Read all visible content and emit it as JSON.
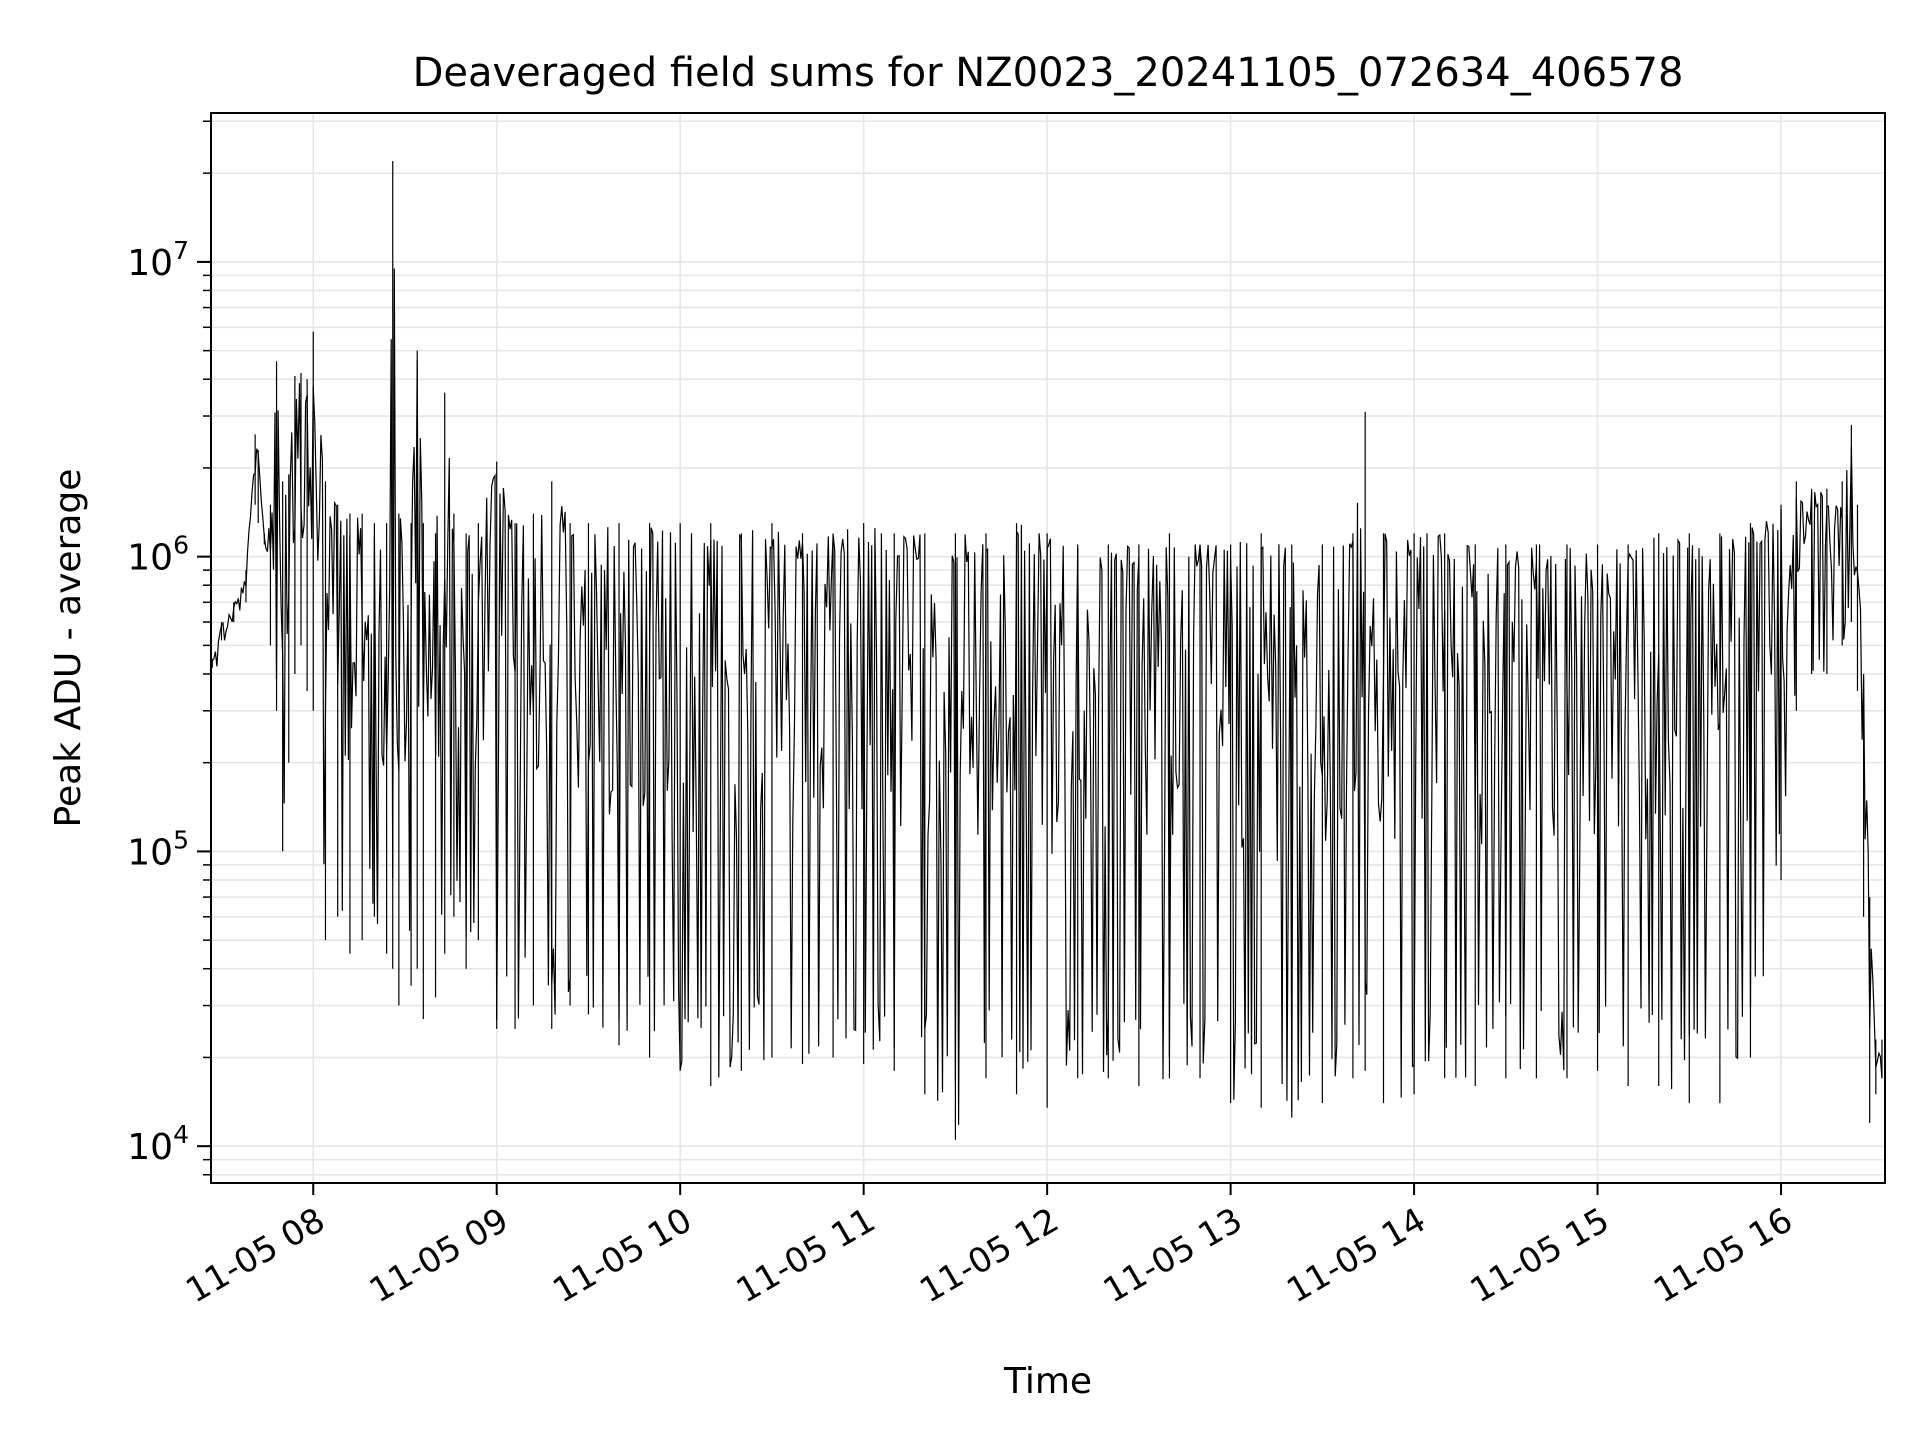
{
  "chart_data": {
    "type": "line",
    "title": "Deaveraged field sums for NZ0023_20241105_072634_406578",
    "xlabel": "Time",
    "ylabel": "Peak ADU - average",
    "y_scale": "log",
    "ylim": [
      7500,
      32000000
    ],
    "xlim": [
      "2024-11-05 07:26:34",
      "2024-11-05 16:34:00"
    ],
    "grid": true,
    "legend": "none",
    "line_color": "#000000",
    "x_ticks": [
      {
        "label": "11-05 08",
        "time": "2024-11-05 08:00"
      },
      {
        "label": "11-05 09",
        "time": "2024-11-05 09:00"
      },
      {
        "label": "11-05 10",
        "time": "2024-11-05 10:00"
      },
      {
        "label": "11-05 11",
        "time": "2024-11-05 11:00"
      },
      {
        "label": "11-05 12",
        "time": "2024-11-05 12:00"
      },
      {
        "label": "11-05 13",
        "time": "2024-11-05 13:00"
      },
      {
        "label": "11-05 14",
        "time": "2024-11-05 14:00"
      },
      {
        "label": "11-05 15",
        "time": "2024-11-05 15:00"
      },
      {
        "label": "11-05 16",
        "time": "2024-11-05 16:00"
      }
    ],
    "y_ticks": [
      {
        "base": "10",
        "exp": "4",
        "value": 10000
      },
      {
        "base": "10",
        "exp": "5",
        "value": 100000
      },
      {
        "base": "10",
        "exp": "6",
        "value": 1000000
      },
      {
        "base": "10",
        "exp": "7",
        "value": 10000000
      }
    ],
    "series": [
      {
        "x": [
          "2024-11-05 07:27",
          "2024-11-05 07:30",
          "2024-11-05 07:34",
          "2024-11-05 07:38",
          "2024-11-05 07:41",
          "2024-11-05 07:42",
          "2024-11-05 07:44",
          "2024-11-05 07:46",
          "2024-11-05 07:48",
          "2024-11-05 07:50",
          "2024-11-05 07:52",
          "2024-11-05 07:54",
          "2024-11-05 07:56",
          "2024-11-05 07:58",
          "2024-11-05 08:00",
          "2024-11-05 08:04",
          "2024-11-05 08:08",
          "2024-11-05 08:12",
          "2024-11-05 08:16",
          "2024-11-05 08:20",
          "2024-11-05 08:24",
          "2024-11-05 08:26",
          "2024-11-05 08:28",
          "2024-11-05 08:32",
          "2024-11-05 08:34",
          "2024-11-05 08:36",
          "2024-11-05 08:40",
          "2024-11-05 08:43",
          "2024-11-05 08:46",
          "2024-11-05 08:50",
          "2024-11-05 08:54",
          "2024-11-05 09:00",
          "2024-11-05 09:06",
          "2024-11-05 09:12",
          "2024-11-05 09:18",
          "2024-11-05 09:24",
          "2024-11-05 09:30",
          "2024-11-05 09:40",
          "2024-11-05 09:50",
          "2024-11-05 10:00",
          "2024-11-05 10:10",
          "2024-11-05 10:20",
          "2024-11-05 10:30",
          "2024-11-05 10:40",
          "2024-11-05 10:50",
          "2024-11-05 11:00",
          "2024-11-05 11:10",
          "2024-11-05 11:20",
          "2024-11-05 11:30",
          "2024-11-05 11:40",
          "2024-11-05 11:50",
          "2024-11-05 12:00",
          "2024-11-05 12:10",
          "2024-11-05 12:20",
          "2024-11-05 12:30",
          "2024-11-05 12:40",
          "2024-11-05 12:50",
          "2024-11-05 13:00",
          "2024-11-05 13:10",
          "2024-11-05 13:20",
          "2024-11-05 13:30",
          "2024-11-05 13:40",
          "2024-11-05 13:44",
          "2024-11-05 13:50",
          "2024-11-05 14:00",
          "2024-11-05 14:10",
          "2024-11-05 14:20",
          "2024-11-05 14:30",
          "2024-11-05 14:40",
          "2024-11-05 14:50",
          "2024-11-05 15:00",
          "2024-11-05 15:10",
          "2024-11-05 15:20",
          "2024-11-05 15:30",
          "2024-11-05 15:40",
          "2024-11-05 15:50",
          "2024-11-05 16:00",
          "2024-11-05 16:05",
          "2024-11-05 16:10",
          "2024-11-05 16:15",
          "2024-11-05 16:20",
          "2024-11-05 16:23",
          "2024-11-05 16:25",
          "2024-11-05 16:27",
          "2024-11-05 16:29",
          "2024-11-05 16:31",
          "2024-11-05 16:33"
        ],
        "high": [
          450000,
          600000,
          700000,
          900000,
          2600000,
          2300000,
          1200000,
          1500000,
          4600000,
          1800000,
          1900000,
          4100000,
          4200000,
          4000000,
          5800000,
          1800000,
          1500000,
          1400000,
          1400000,
          1300000,
          1300000,
          22000000,
          1400000,
          1300000,
          5000000,
          1300000,
          1200000,
          3600000,
          1400000,
          1200000,
          1300000,
          2100000,
          1300000,
          1400000,
          1800000,
          1300000,
          1300000,
          1300000,
          1300000,
          1300000,
          1300000,
          1200000,
          1300000,
          1200000,
          1200000,
          1300000,
          1200000,
          1200000,
          1200000,
          1200000,
          1300000,
          1200000,
          1100000,
          1100000,
          1100000,
          1200000,
          1100000,
          1100000,
          1200000,
          1100000,
          1100000,
          1200000,
          3100000,
          1200000,
          1200000,
          1200000,
          1100000,
          1100000,
          1100000,
          1100000,
          1100000,
          1100000,
          1200000,
          1200000,
          1200000,
          1300000,
          1500000,
          1800000,
          1700000,
          1700000,
          1800000,
          2800000,
          1500000,
          400000,
          70000,
          23000,
          23000
        ],
        "low": [
          420000,
          520000,
          600000,
          700000,
          1500000,
          1300000,
          1100000,
          500000,
          300000,
          100000,
          200000,
          400000,
          500000,
          350000,
          300000,
          50000,
          60000,
          45000,
          50000,
          60000,
          45000,
          40000,
          30000,
          35000,
          40000,
          27000,
          32000,
          45000,
          60000,
          40000,
          50000,
          25000,
          25000,
          30000,
          25000,
          30000,
          28000,
          22000,
          20000,
          18000,
          16000,
          18000,
          20000,
          19000,
          20000,
          19000,
          18000,
          15000,
          10500,
          17000,
          15000,
          13500,
          17000,
          17000,
          16000,
          17000,
          17000,
          14000,
          13500,
          12500,
          14000,
          17000,
          18000,
          14000,
          15000,
          17000,
          16000,
          17000,
          17000,
          17000,
          18000,
          16000,
          16000,
          14000,
          14000,
          20000,
          80000,
          300000,
          400000,
          400000,
          500000,
          600000,
          350000,
          60000,
          12000,
          15000,
          17000
        ]
      }
    ]
  }
}
